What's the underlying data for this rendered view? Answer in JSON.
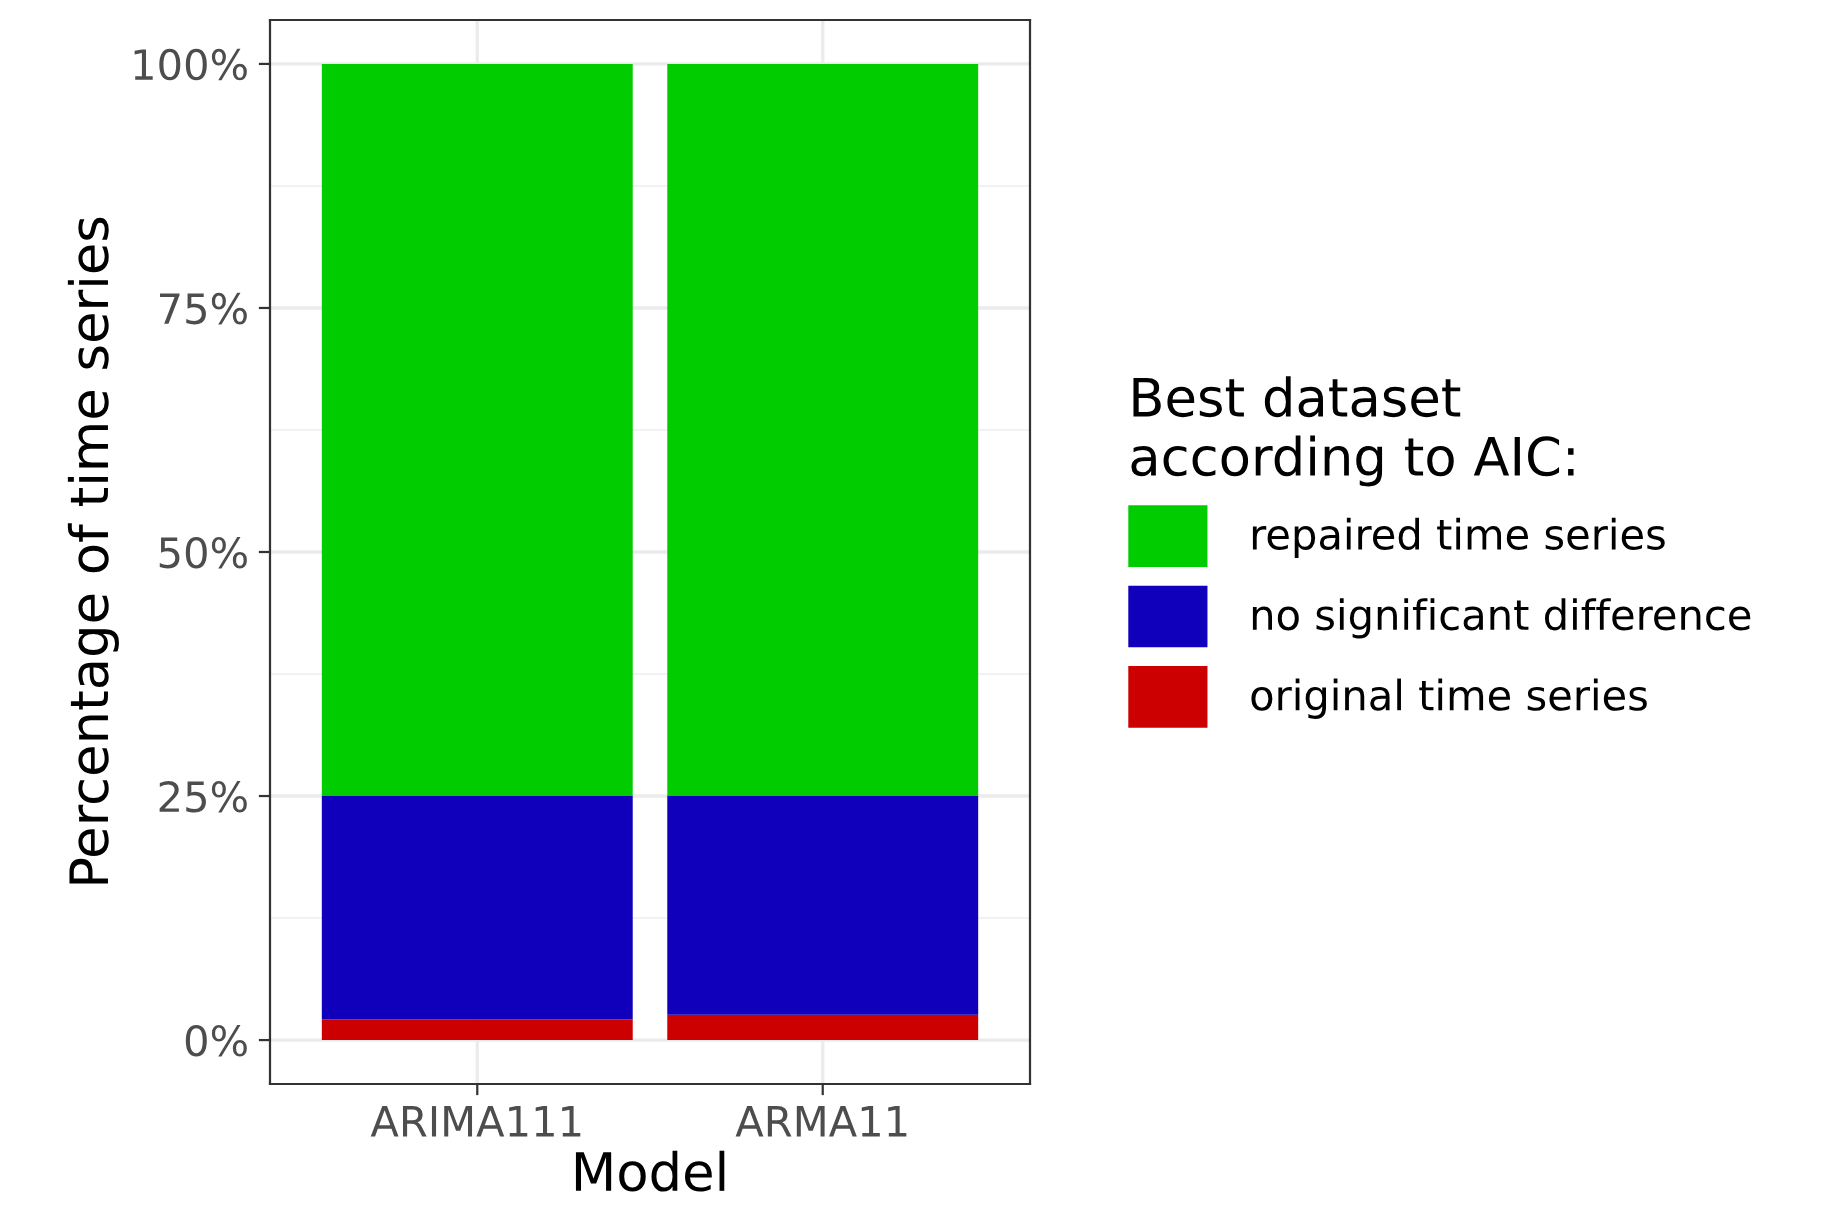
{
  "chart_data": {
    "type": "bar",
    "stacked": true,
    "xlabel": "Model",
    "ylabel": "Percentage of time series",
    "legend_title": "Best dataset\naccording to AIC:",
    "categories": [
      "ARIMA111",
      "ARMA11"
    ],
    "series": [
      {
        "name": "original time series",
        "color": "#cc0000",
        "values": [
          2.1,
          2.6
        ]
      },
      {
        "name": "no significant difference",
        "color": "#1100bb",
        "values": [
          22.9,
          22.4
        ]
      },
      {
        "name": "repaired time series",
        "color": "#00cc00",
        "values": [
          75,
          75
        ]
      }
    ],
    "ylim": [
      -4.5,
      104.5
    ],
    "yticks": [
      {
        "value": 0,
        "label": "0%"
      },
      {
        "value": 25,
        "label": "25%"
      },
      {
        "value": 50,
        "label": "50%"
      },
      {
        "value": 75,
        "label": "75%"
      },
      {
        "value": 100,
        "label": "100%"
      }
    ],
    "grid": true,
    "legend": "right"
  }
}
